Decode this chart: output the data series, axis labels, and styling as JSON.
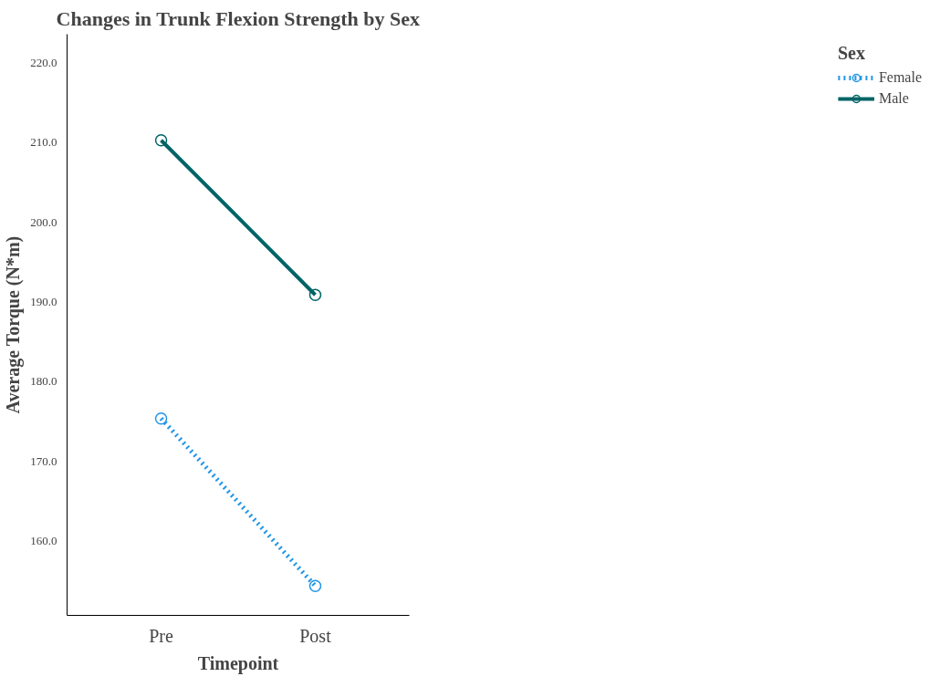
{
  "chart_data": {
    "type": "line",
    "title": "Changes in Trunk Flexion Strength by Sex",
    "xlabel": "Timepoint",
    "ylabel": "Average Torque (N*m)",
    "legend_title": "Sex",
    "categories": [
      "Pre",
      "Post"
    ],
    "series": [
      {
        "name": "Female",
        "color": "#2196e8",
        "values": [
          175.4,
          154.4
        ],
        "line_style": "dotted"
      },
      {
        "name": "Male",
        "color": "#006466",
        "values": [
          210.3,
          190.9
        ],
        "line_style": "solid"
      }
    ],
    "ylim": [
      150.7,
      223.6
    ],
    "yticks": [
      {
        "value": 160,
        "label": "160.0"
      },
      {
        "value": 170,
        "label": "170.0"
      },
      {
        "value": 180,
        "label": "180.0"
      },
      {
        "value": 190,
        "label": "190.0"
      },
      {
        "value": 200,
        "label": "200.0"
      },
      {
        "value": 210,
        "label": "210.0"
      },
      {
        "value": 220,
        "label": "220.0"
      }
    ],
    "marker": "circle",
    "grid": false,
    "legend": "top right"
  }
}
